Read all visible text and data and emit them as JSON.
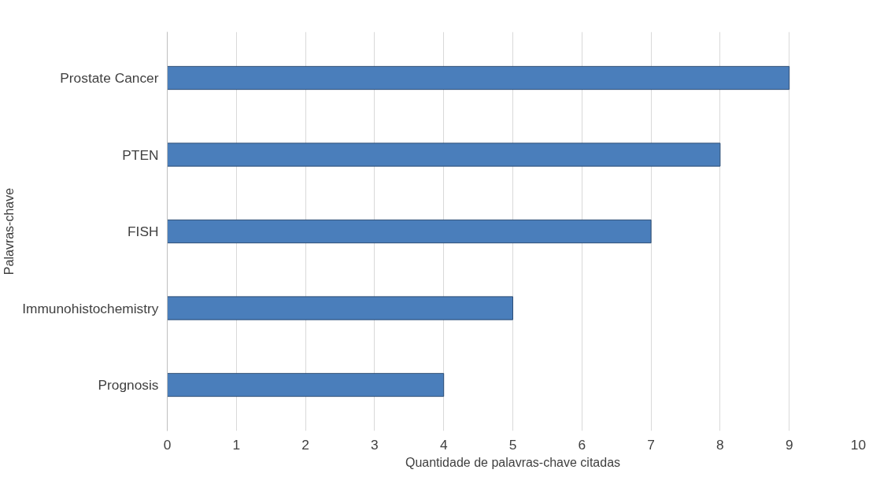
{
  "chart_data": {
    "type": "bar",
    "orientation": "horizontal",
    "categories": [
      "Prostate Cancer",
      "PTEN",
      "FISH",
      "Immunohistochemistry",
      "Prognosis"
    ],
    "values": [
      9,
      8,
      7,
      5,
      4
    ],
    "color": "#4a7ebb",
    "xlim": [
      0,
      10
    ],
    "xticks": [
      0,
      1,
      2,
      3,
      4,
      5,
      6,
      7,
      8,
      9,
      10
    ],
    "grid": "x",
    "xlabel": "Quantidade de palavras-chave citadas",
    "ylabel": "Palavras-chave"
  }
}
